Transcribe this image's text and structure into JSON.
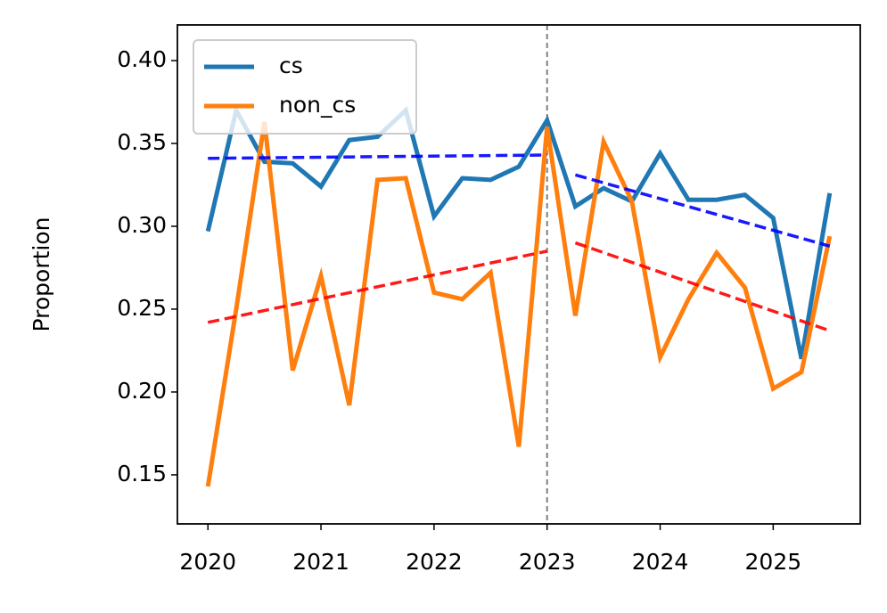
{
  "chart_data": {
    "type": "line",
    "y_label": "Proportion",
    "x": [
      2020,
      2020.25,
      2020.5,
      2020.75,
      2021,
      2021.25,
      2021.5,
      2021.75,
      2022,
      2022.25,
      2022.5,
      2022.75,
      2023,
      2023.25,
      2023.5,
      2023.75,
      2024,
      2024.25,
      2024.5,
      2024.75,
      2025,
      2025.25,
      2025.5
    ],
    "series": [
      {
        "name": "cs",
        "color": "#1f77b4",
        "values": [
          0.297,
          0.37,
          0.339,
          0.338,
          0.324,
          0.352,
          0.354,
          0.37,
          0.306,
          0.329,
          0.328,
          0.336,
          0.364,
          0.312,
          0.323,
          0.315,
          0.344,
          0.316,
          0.316,
          0.319,
          0.305,
          0.22,
          0.32
        ]
      },
      {
        "name": "non_cs",
        "color": "#ff7f0e",
        "values": [
          0.143,
          0.25,
          0.363,
          0.213,
          0.27,
          0.192,
          0.328,
          0.329,
          0.26,
          0.256,
          0.272,
          0.167,
          0.36,
          0.246,
          0.351,
          0.315,
          0.221,
          0.256,
          0.284,
          0.263,
          0.202,
          0.212,
          0.294
        ]
      }
    ],
    "trend_lines": [
      {
        "color": "#0000ff",
        "x": [
          2020,
          2023
        ],
        "values": [
          0.341,
          0.343
        ]
      },
      {
        "color": "#0000ff",
        "x": [
          2023.25,
          2025.5
        ],
        "values": [
          0.331,
          0.288
        ]
      },
      {
        "color": "#ff0000",
        "x": [
          2020,
          2023
        ],
        "values": [
          0.242,
          0.285
        ]
      },
      {
        "color": "#ff0000",
        "x": [
          2023.25,
          2025.5
        ],
        "values": [
          0.29,
          0.237
        ]
      }
    ],
    "vline": {
      "x": 2023,
      "color": "#808080"
    },
    "xlim": [
      2019.73,
      2025.77
    ],
    "ylim": [
      0.1204,
      0.4215
    ],
    "xticks": [
      2020,
      2021,
      2022,
      2023,
      2024,
      2025
    ],
    "yticks": [
      0.15,
      {
        "value": 0.2,
        "label": "0.20"
      },
      0.25,
      {
        "value": 0.3,
        "label": "0.30"
      },
      0.35,
      {
        "value": 0.4,
        "label": "0.40"
      }
    ],
    "legend": "upper left"
  }
}
